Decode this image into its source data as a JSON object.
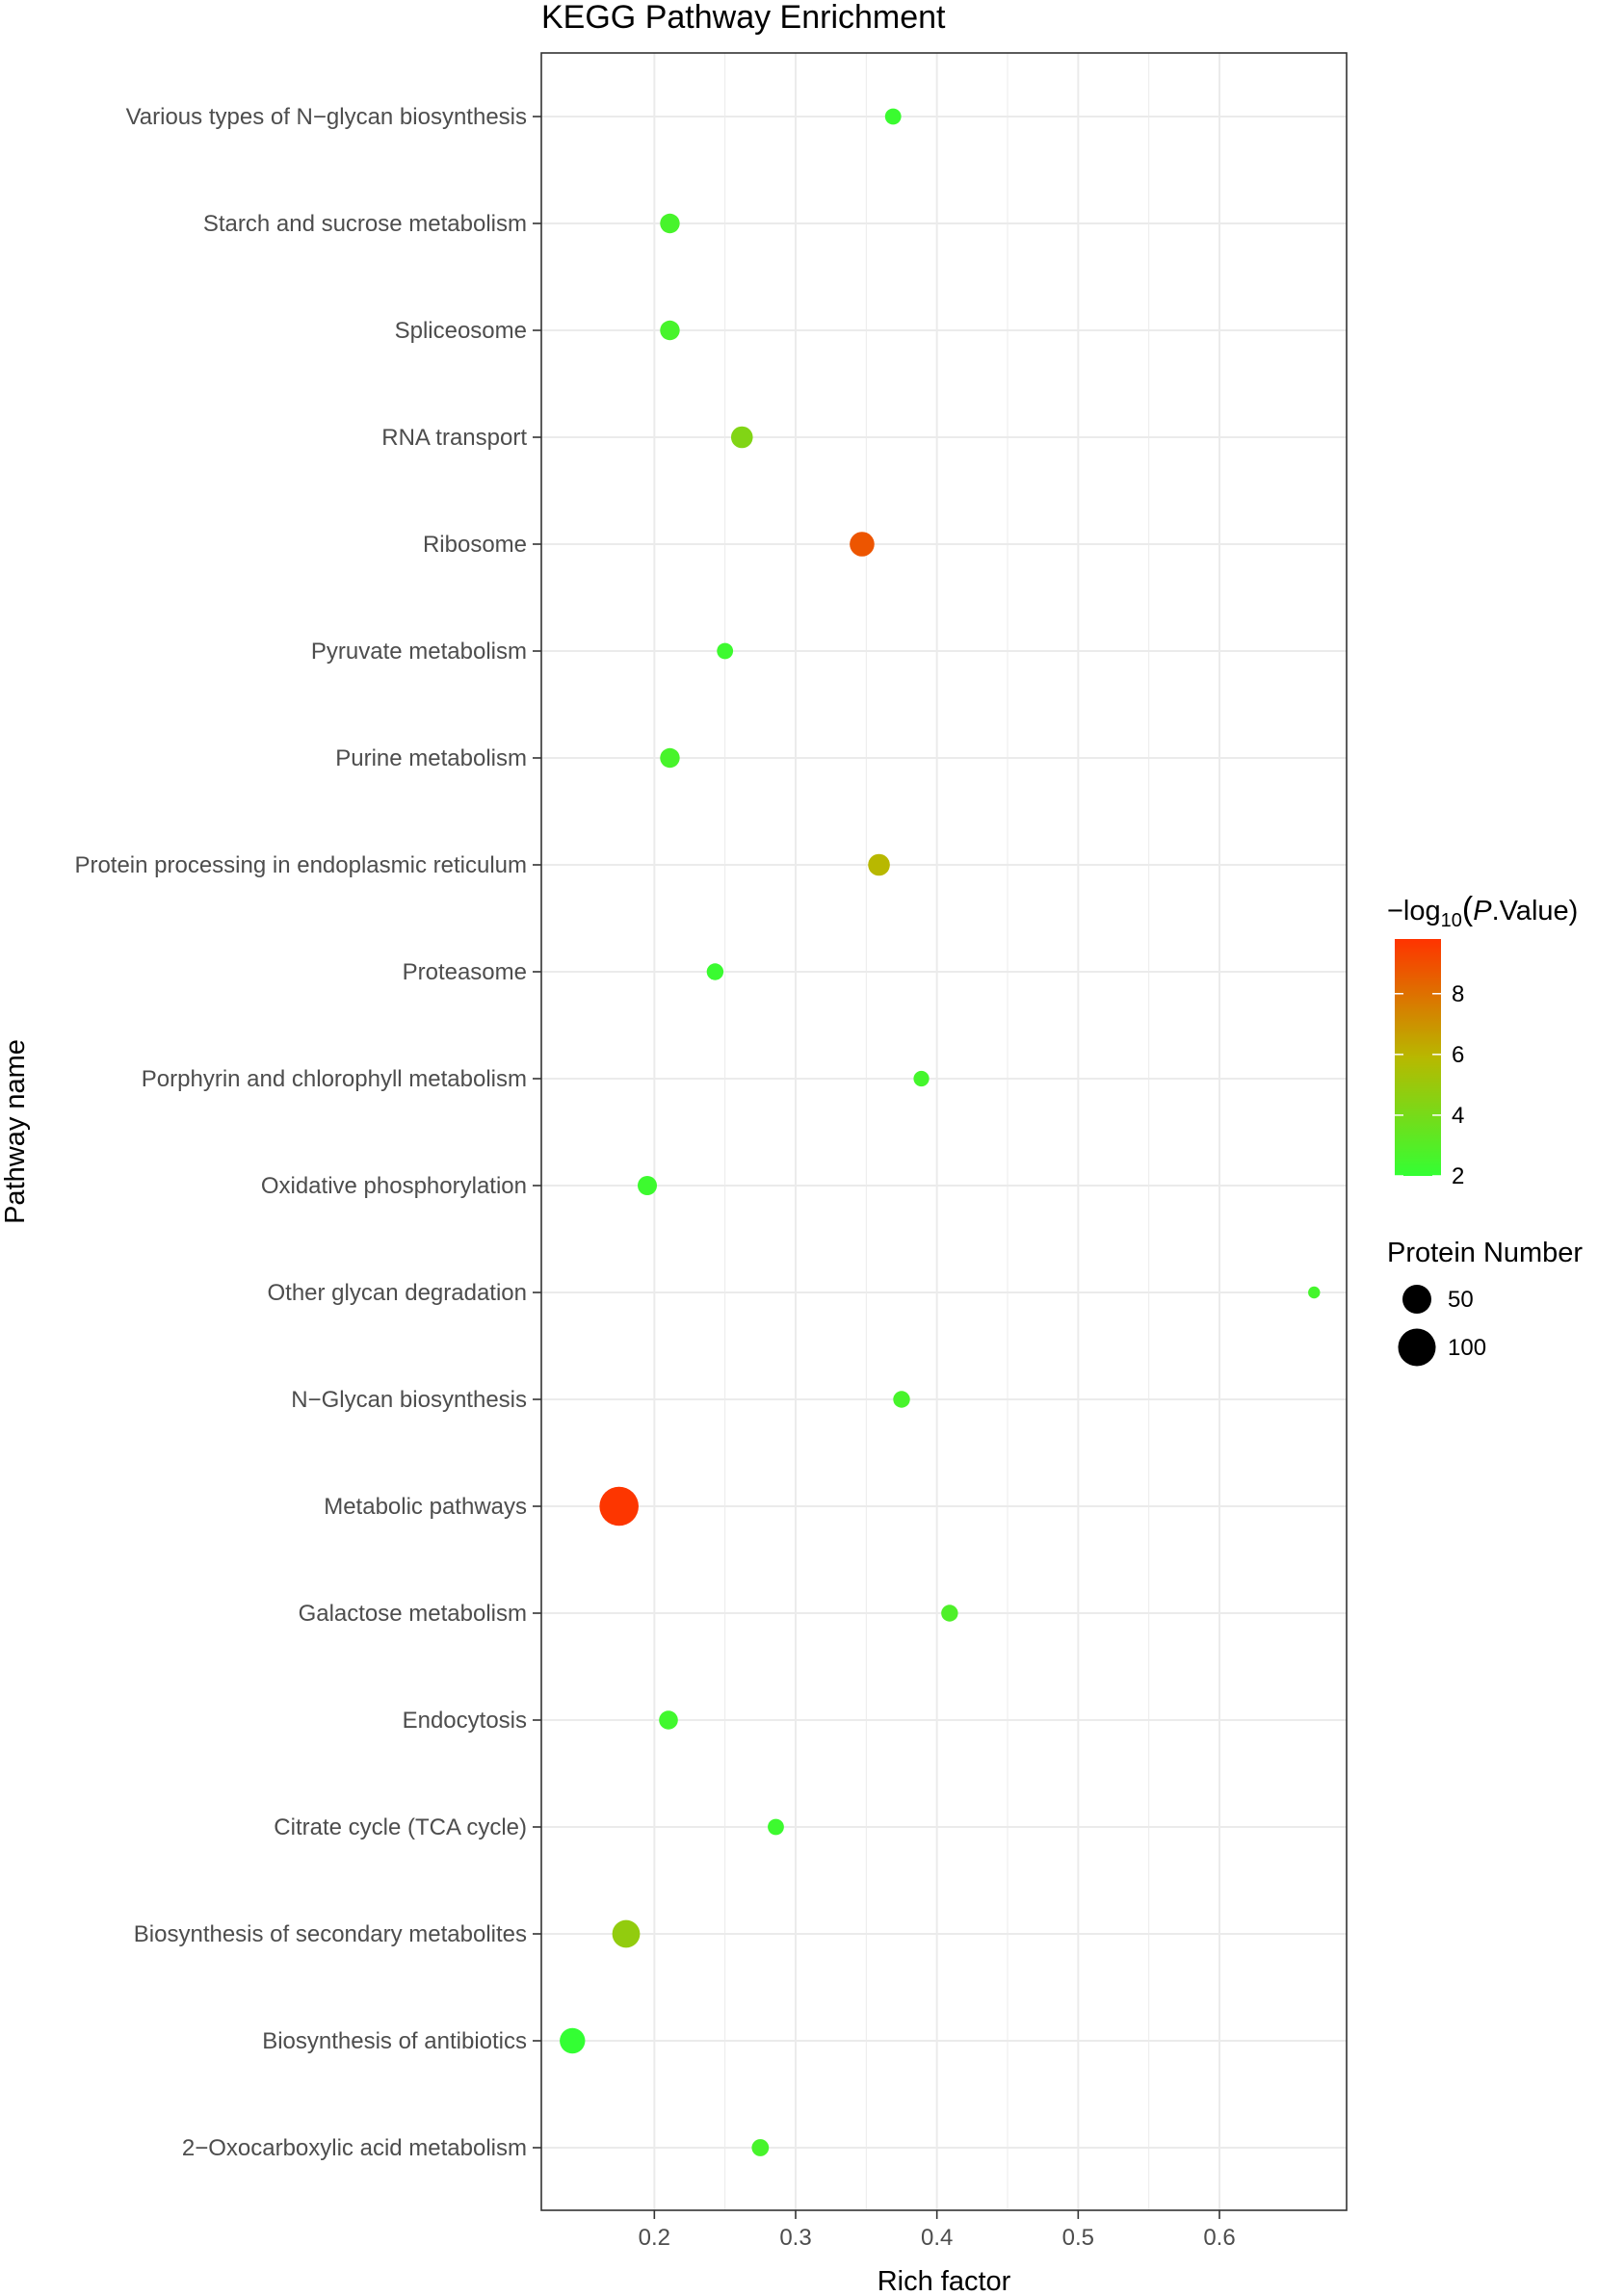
{
  "chart_data": {
    "type": "scatter",
    "title": "KEGG Pathway Enrichment",
    "xlabel": "Rich factor",
    "ylabel": "Pathway name",
    "xlim": [
      0.12,
      0.69
    ],
    "x_ticks": [
      0.2,
      0.3,
      0.4,
      0.5,
      0.6
    ],
    "x_tick_labels": [
      "0.2",
      "0.3",
      "0.4",
      "0.5",
      "0.6"
    ],
    "grid": true,
    "categories": [
      "Various types of N−glycan biosynthesis",
      "Starch and sucrose metabolism",
      "Spliceosome",
      "RNA transport",
      "Ribosome",
      "Pyruvate metabolism",
      "Purine metabolism",
      "Protein processing in endoplasmic reticulum",
      "Proteasome",
      "Porphyrin and chlorophyll metabolism",
      "Oxidative phosphorylation",
      "Other glycan degradation",
      "N−Glycan biosynthesis",
      "Metabolic pathways",
      "Galactose metabolism",
      "Endocytosis",
      "Citrate cycle (TCA cycle)",
      "Biosynthesis of secondary metabolites",
      "Biosynthesis of antibiotics",
      "2−Oxocarboxylic acid metabolism"
    ],
    "points": [
      {
        "x": 0.369,
        "protein_number": 8,
        "neg_log10_p": 2.2
      },
      {
        "x": 0.211,
        "protein_number": 16,
        "neg_log10_p": 2.6
      },
      {
        "x": 0.211,
        "protein_number": 16,
        "neg_log10_p": 2.6
      },
      {
        "x": 0.262,
        "protein_number": 22,
        "neg_log10_p": 4.3
      },
      {
        "x": 0.347,
        "protein_number": 32,
        "neg_log10_p": 8.8
      },
      {
        "x": 0.25,
        "protein_number": 8,
        "neg_log10_p": 2.3
      },
      {
        "x": 0.211,
        "protein_number": 16,
        "neg_log10_p": 2.6
      },
      {
        "x": 0.359,
        "protein_number": 22,
        "neg_log10_p": 5.9
      },
      {
        "x": 0.243,
        "protein_number": 9,
        "neg_log10_p": 2.2
      },
      {
        "x": 0.389,
        "protein_number": 7,
        "neg_log10_p": 2.5
      },
      {
        "x": 0.195,
        "protein_number": 15,
        "neg_log10_p": 2.3
      },
      {
        "x": 0.667,
        "protein_number": 2,
        "neg_log10_p": 2.5
      },
      {
        "x": 0.375,
        "protein_number": 9,
        "neg_log10_p": 2.6
      },
      {
        "x": 0.175,
        "protein_number": 110,
        "neg_log10_p": 9.7
      },
      {
        "x": 0.409,
        "protein_number": 9,
        "neg_log10_p": 2.8
      },
      {
        "x": 0.21,
        "protein_number": 14,
        "neg_log10_p": 2.4
      },
      {
        "x": 0.286,
        "protein_number": 8,
        "neg_log10_p": 2.3
      },
      {
        "x": 0.18,
        "protein_number": 45,
        "neg_log10_p": 4.8
      },
      {
        "x": 0.142,
        "protein_number": 35,
        "neg_log10_p": 2.0
      },
      {
        "x": 0.275,
        "protein_number": 10,
        "neg_log10_p": 2.6
      }
    ],
    "color_legend": {
      "title_prefix": "−log",
      "title_sub": "10",
      "title_open": "(",
      "title_italic": "P",
      "title_suffix": ".Value)",
      "range": [
        2,
        9.8
      ],
      "ticks": [
        2,
        4,
        6,
        8
      ],
      "tick_labels": [
        "2",
        "4",
        "6",
        "8"
      ],
      "low_color": "#33ff33",
      "mid_color": "#b8b800",
      "high_color": "#ff3300"
    },
    "size_legend": {
      "title": "Protein Number",
      "values": [
        50,
        100
      ],
      "labels": [
        "50",
        "100"
      ]
    },
    "colors": {
      "panel_border": "#333333",
      "grid": "#ebebeb",
      "axis_text": "#4d4d4d"
    }
  }
}
